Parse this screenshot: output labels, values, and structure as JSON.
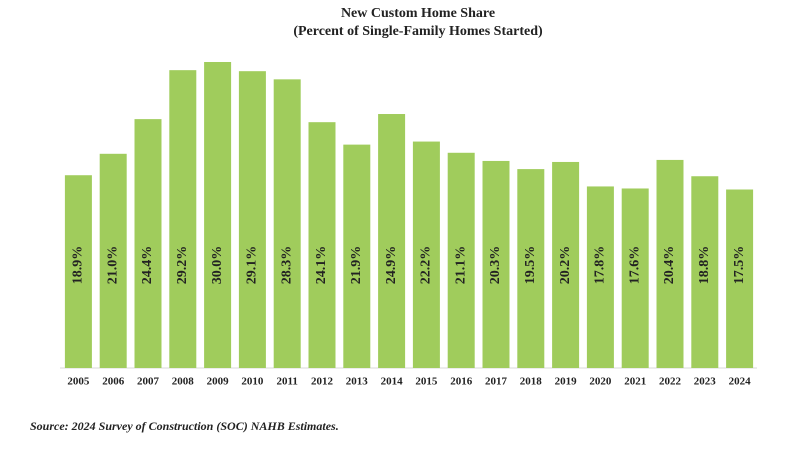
{
  "chart_data": {
    "type": "bar",
    "title": "New Custom Home Share",
    "subtitle": "(Percent of Single-Family Homes Started)",
    "categories": [
      "2005",
      "2006",
      "2007",
      "2008",
      "2009",
      "2010",
      "2011",
      "2012",
      "2013",
      "2014",
      "2015",
      "2016",
      "2017",
      "2018",
      "2019",
      "2020",
      "2021",
      "2022",
      "2023",
      "2024"
    ],
    "values": [
      18.9,
      21.0,
      24.4,
      29.2,
      30.0,
      29.1,
      28.3,
      24.1,
      21.9,
      24.9,
      22.2,
      21.1,
      20.3,
      19.5,
      20.2,
      17.8,
      17.6,
      20.4,
      18.8,
      17.5
    ],
    "value_labels": [
      "18.9%",
      "21.0%",
      "24.4%",
      "29.2%",
      "30.0%",
      "29.1%",
      "28.3%",
      "24.1%",
      "21.9%",
      "24.9%",
      "22.2%",
      "21.1%",
      "20.3%",
      "19.5%",
      "20.2%",
      "17.8%",
      "17.6%",
      "20.4%",
      "18.8%",
      "17.5%"
    ],
    "color": "#a0cc5c",
    "source": "Source: 2024 Survey of Construction (SOC) NAHB Estimates."
  }
}
